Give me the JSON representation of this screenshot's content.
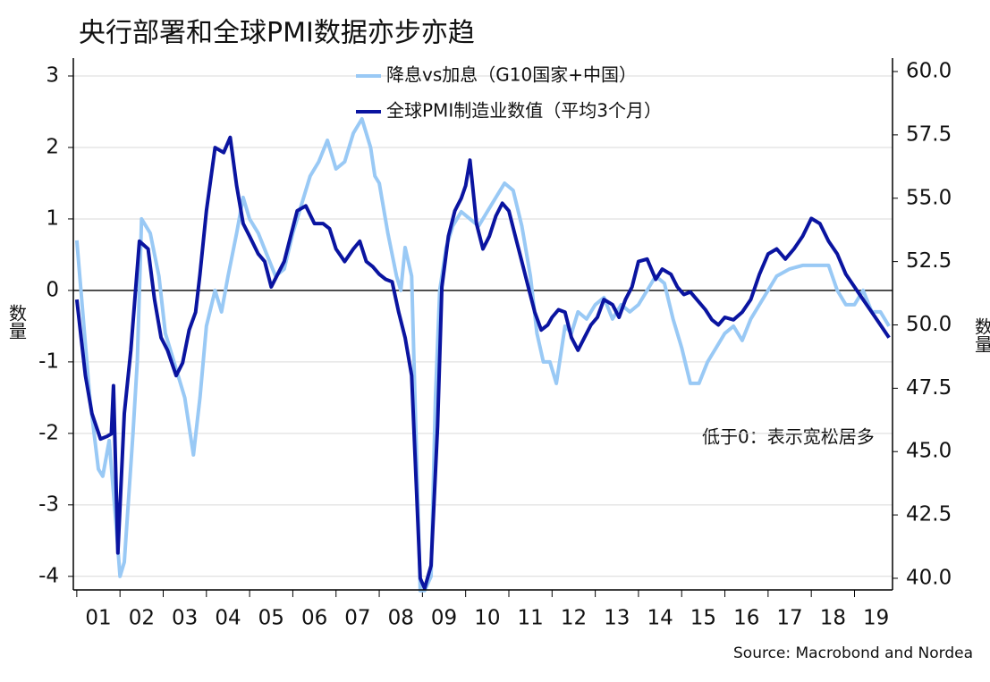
{
  "chart_data": {
    "type": "line",
    "title": "央行部署和全球PMI数据亦步亦趋",
    "y_label": "数量",
    "y2_label": "数量",
    "annotation": "低于0：表示宽松居多",
    "source": "Source: Macrobond and Nordea",
    "xlim": [
      2000.92,
      2019.88
    ],
    "xticks": [
      {
        "value": 2001,
        "label": "01"
      },
      {
        "value": 2002,
        "label": "02"
      },
      {
        "value": 2003,
        "label": "03"
      },
      {
        "value": 2004,
        "label": "04"
      },
      {
        "value": 2005,
        "label": "05"
      },
      {
        "value": 2006,
        "label": "06"
      },
      {
        "value": 2007,
        "label": "07"
      },
      {
        "value": 2008,
        "label": "08"
      },
      {
        "value": 2009,
        "label": "09"
      },
      {
        "value": 2010,
        "label": "10"
      },
      {
        "value": 2011,
        "label": "11"
      },
      {
        "value": 2012,
        "label": "12"
      },
      {
        "value": 2013,
        "label": "13"
      },
      {
        "value": 2014,
        "label": "14"
      },
      {
        "value": 2015,
        "label": "15"
      },
      {
        "value": 2016,
        "label": "16"
      },
      {
        "value": 2017,
        "label": "17"
      },
      {
        "value": 2018,
        "label": "18"
      },
      {
        "value": 2019,
        "label": "19"
      }
    ],
    "ylim": [
      -4.19,
      3.25
    ],
    "yticks": [
      -4,
      -3,
      -2,
      -1,
      0,
      1,
      2,
      3
    ],
    "y2lim": [
      39.54,
      60.53
    ],
    "y2ticks": [
      {
        "value": 40,
        "label": "40.0"
      },
      42.5,
      {
        "value": 45,
        "label": "45.0"
      },
      47.5,
      {
        "value": 50,
        "label": "50.0"
      },
      52.5,
      {
        "value": 55,
        "label": "55.0"
      },
      57.5,
      {
        "value": 60,
        "label": "60.0"
      }
    ],
    "grid": true,
    "zero_line": true,
    "series": [
      {
        "name": "降息vs加息（G10国家+中国）",
        "color": "#99c9f5",
        "axis": "y",
        "x": [
          2001.0,
          2001.3,
          2001.5,
          2001.6,
          2001.75,
          2001.9,
          2002.0,
          2002.1,
          2002.3,
          2002.4,
          2002.5,
          2002.7,
          2002.9,
          2003.05,
          2003.25,
          2003.5,
          2003.7,
          2003.85,
          2004.0,
          2004.2,
          2004.35,
          2004.5,
          2004.7,
          2004.85,
          2005.0,
          2005.2,
          2005.4,
          2005.6,
          2005.8,
          2006.0,
          2006.2,
          2006.4,
          2006.6,
          2006.8,
          2007.0,
          2007.2,
          2007.4,
          2007.6,
          2007.8,
          2007.9,
          2008.0,
          2008.2,
          2008.4,
          2008.5,
          2008.6,
          2008.75,
          2008.85,
          2008.95,
          2009.05,
          2009.2,
          2009.3,
          2009.4,
          2009.55,
          2009.7,
          2009.9,
          2010.1,
          2010.3,
          2010.5,
          2010.7,
          2010.9,
          2011.1,
          2011.3,
          2011.5,
          2011.65,
          2011.8,
          2011.95,
          2012.1,
          2012.3,
          2012.45,
          2012.6,
          2012.8,
          2013.0,
          2013.2,
          2013.4,
          2013.6,
          2013.8,
          2014.0,
          2014.2,
          2014.4,
          2014.6,
          2014.8,
          2015.0,
          2015.2,
          2015.4,
          2015.6,
          2015.8,
          2016.0,
          2016.2,
          2016.4,
          2016.6,
          2016.8,
          2017.0,
          2017.2,
          2017.5,
          2017.8,
          2018.1,
          2018.4,
          2018.6,
          2018.8,
          2019.0,
          2019.2,
          2019.4,
          2019.6,
          2019.8
        ],
        "values": [
          0.7,
          -1.5,
          -2.5,
          -2.6,
          -2.1,
          -3.2,
          -4.0,
          -3.8,
          -2.0,
          -1.0,
          1.0,
          0.8,
          0.2,
          -0.6,
          -1.0,
          -1.5,
          -2.3,
          -1.5,
          -0.5,
          0.0,
          -0.3,
          0.2,
          0.8,
          1.3,
          1.0,
          0.8,
          0.5,
          0.2,
          0.3,
          0.8,
          1.2,
          1.6,
          1.8,
          2.1,
          1.7,
          1.8,
          2.2,
          2.4,
          2.0,
          1.6,
          1.5,
          0.8,
          0.2,
          0.0,
          0.6,
          0.2,
          -2.0,
          -4.2,
          -4.2,
          -4.0,
          -1.5,
          0.0,
          0.6,
          0.9,
          1.1,
          1.0,
          0.9,
          1.1,
          1.3,
          1.5,
          1.4,
          0.9,
          0.2,
          -0.6,
          -1.0,
          -1.0,
          -1.3,
          -0.5,
          -0.6,
          -0.3,
          -0.4,
          -0.2,
          -0.1,
          -0.4,
          -0.2,
          -0.3,
          -0.2,
          0.0,
          0.2,
          0.1,
          -0.4,
          -0.8,
          -1.3,
          -1.3,
          -1.0,
          -0.8,
          -0.6,
          -0.5,
          -0.7,
          -0.4,
          -0.2,
          0.0,
          0.2,
          0.3,
          0.35,
          0.35,
          0.35,
          0.0,
          -0.2,
          -0.2,
          0.0,
          -0.3,
          -0.3,
          -0.5
        ]
      },
      {
        "name": "全球PMI制造业数值（平均3个月）",
        "color": "#0a14a0",
        "axis": "y2",
        "x": [
          2001.0,
          2001.2,
          2001.35,
          2001.55,
          2001.7,
          2001.8,
          2001.85,
          2001.95,
          2002.1,
          2002.25,
          2002.45,
          2002.65,
          2002.8,
          2002.95,
          2003.1,
          2003.3,
          2003.45,
          2003.6,
          2003.75,
          2003.85,
          2004.0,
          2004.2,
          2004.4,
          2004.55,
          2004.7,
          2004.85,
          2005.0,
          2005.2,
          2005.35,
          2005.5,
          2005.65,
          2005.8,
          2005.95,
          2006.1,
          2006.3,
          2006.5,
          2006.7,
          2006.85,
          2007.0,
          2007.2,
          2007.4,
          2007.55,
          2007.7,
          2007.85,
          2008.0,
          2008.15,
          2008.3,
          2008.45,
          2008.6,
          2008.75,
          2008.85,
          2008.95,
          2009.05,
          2009.2,
          2009.35,
          2009.45,
          2009.6,
          2009.75,
          2009.9,
          2010.0,
          2010.1,
          2010.25,
          2010.4,
          2010.55,
          2010.7,
          2010.85,
          2011.0,
          2011.15,
          2011.3,
          2011.45,
          2011.6,
          2011.75,
          2011.9,
          2012.0,
          2012.15,
          2012.3,
          2012.45,
          2012.6,
          2012.75,
          2012.9,
          2013.05,
          2013.2,
          2013.4,
          2013.55,
          2013.7,
          2013.85,
          2014.0,
          2014.2,
          2014.4,
          2014.55,
          2014.75,
          2014.9,
          2015.05,
          2015.2,
          2015.35,
          2015.55,
          2015.7,
          2015.85,
          2016.0,
          2016.2,
          2016.4,
          2016.6,
          2016.8,
          2017.0,
          2017.2,
          2017.4,
          2017.6,
          2017.8,
          2018.0,
          2018.2,
          2018.4,
          2018.6,
          2018.8,
          2019.0,
          2019.2,
          2019.4,
          2019.6,
          2019.8
        ],
        "values": [
          51.0,
          48.0,
          46.5,
          45.5,
          45.6,
          45.7,
          47.6,
          41.0,
          46.5,
          49.0,
          53.3,
          53.0,
          51.0,
          49.5,
          49.0,
          48.0,
          48.5,
          49.8,
          50.5,
          52.0,
          54.5,
          57.0,
          56.8,
          57.4,
          55.5,
          54.0,
          53.5,
          52.8,
          52.5,
          51.5,
          52.0,
          52.5,
          53.5,
          54.5,
          54.7,
          54.0,
          54.0,
          53.8,
          53.0,
          52.5,
          53.0,
          53.3,
          52.5,
          52.3,
          52.0,
          51.8,
          51.7,
          50.5,
          49.5,
          48.0,
          44.0,
          40.0,
          39.6,
          40.5,
          46.0,
          51.5,
          53.5,
          54.5,
          55.0,
          55.5,
          56.5,
          54.0,
          53.0,
          53.5,
          54.3,
          54.8,
          54.5,
          53.5,
          52.5,
          51.5,
          50.5,
          49.8,
          50.0,
          50.3,
          50.6,
          50.5,
          49.5,
          49.0,
          49.5,
          50.0,
          50.3,
          51.0,
          50.8,
          50.3,
          51.0,
          51.5,
          52.5,
          52.6,
          51.8,
          52.2,
          52.0,
          51.5,
          51.2,
          51.3,
          51.0,
          50.6,
          50.2,
          50.0,
          50.3,
          50.2,
          50.5,
          51.0,
          52.0,
          52.8,
          53.0,
          52.6,
          53.0,
          53.5,
          54.2,
          54.0,
          53.3,
          52.8,
          52.0,
          51.5,
          51.0,
          50.5,
          50.0,
          49.5
        ]
      }
    ]
  }
}
